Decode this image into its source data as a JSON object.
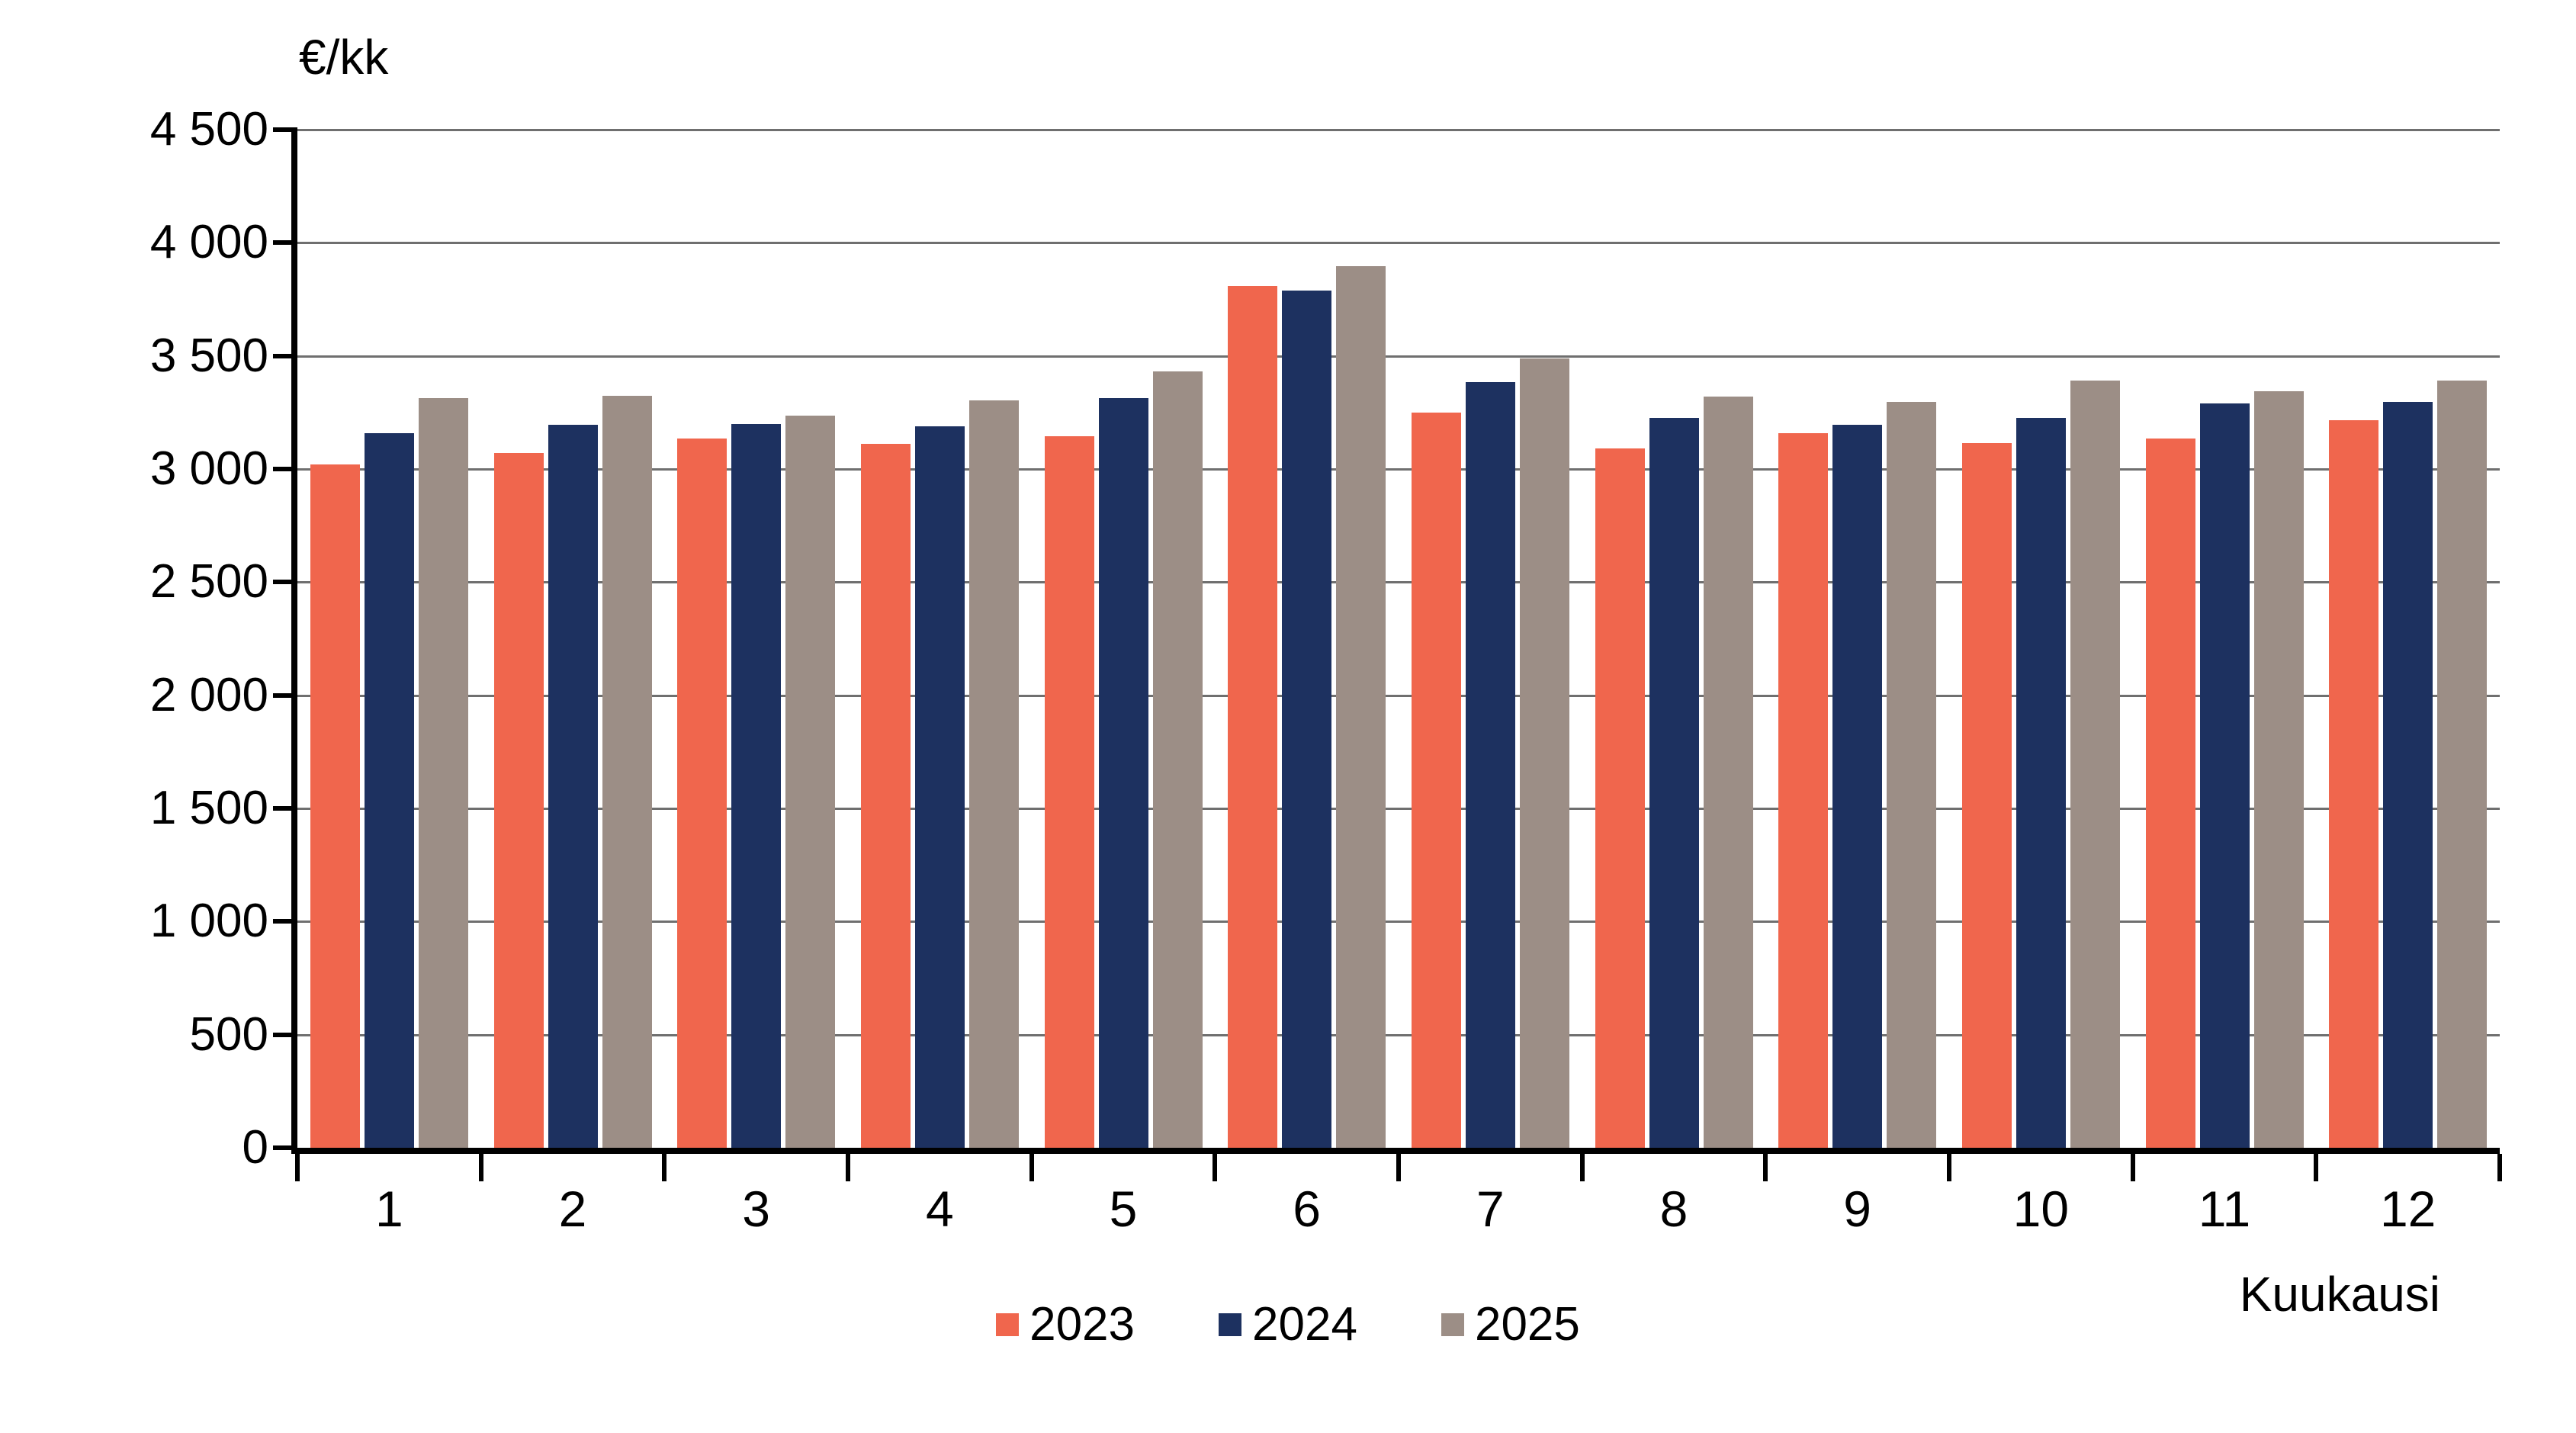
{
  "chart": {
    "unit_label": "€/kk",
    "x_axis_title": "Kuukausi"
  },
  "chart_data": {
    "type": "bar",
    "title": "€/kk",
    "xlabel": "Kuukausi",
    "ylabel": "€/kk",
    "categories": [
      "1",
      "2",
      "3",
      "4",
      "5",
      "6",
      "7",
      "8",
      "9",
      "10",
      "11",
      "12"
    ],
    "series": [
      {
        "name": "2023",
        "color": "#F0664D",
        "values": [
          3020,
          3070,
          3135,
          3110,
          3145,
          3810,
          3250,
          3090,
          3160,
          3115,
          3135,
          3215
        ]
      },
      {
        "name": "2024",
        "color": "#1D3160",
        "values": [
          3160,
          3195,
          3200,
          3190,
          3315,
          3790,
          3385,
          3225,
          3195,
          3225,
          3290,
          3295
        ]
      },
      {
        "name": "2025",
        "color": "#9C8E86",
        "values": [
          3315,
          3325,
          3235,
          3305,
          3430,
          3895,
          3490,
          3320,
          3295,
          3390,
          3345,
          3390
        ]
      }
    ],
    "ylim": [
      0,
      4500
    ],
    "ytick_step": 500,
    "ytick_labels": [
      "0",
      "500",
      "1 000",
      "1 500",
      "2 000",
      "2 500",
      "3 000",
      "3 500",
      "4 000",
      "4 500"
    ],
    "grid": true,
    "gridline_color": "#6f6f6f",
    "axis_color": "#000000",
    "legend_position": "bottom"
  }
}
